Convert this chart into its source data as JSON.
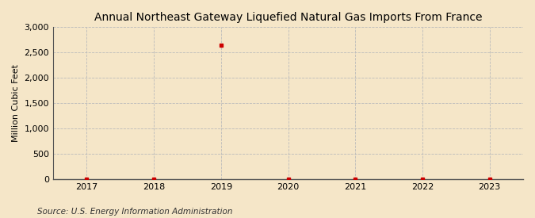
{
  "title": "Annual Northeast Gateway Liquefied Natural Gas Imports From France",
  "ylabel": "Million Cubic Feet",
  "source": "Source: U.S. Energy Information Administration",
  "x_years": [
    2017,
    2018,
    2019,
    2020,
    2021,
    2022,
    2023
  ],
  "y_values": [
    0,
    0,
    2644,
    0,
    0,
    0,
    0
  ],
  "xlim": [
    2016.5,
    2023.5
  ],
  "ylim": [
    0,
    3000
  ],
  "yticks": [
    0,
    500,
    1000,
    1500,
    2000,
    2500,
    3000
  ],
  "xticks": [
    2017,
    2018,
    2019,
    2020,
    2021,
    2022,
    2023
  ],
  "marker_color": "#cc0000",
  "bg_color": "#f5e6c8",
  "plot_bg_color": "#f5e6c8",
  "grid_color": "#bbbbbb",
  "title_fontsize": 10,
  "axis_label_fontsize": 8,
  "tick_fontsize": 8,
  "source_fontsize": 7.5
}
